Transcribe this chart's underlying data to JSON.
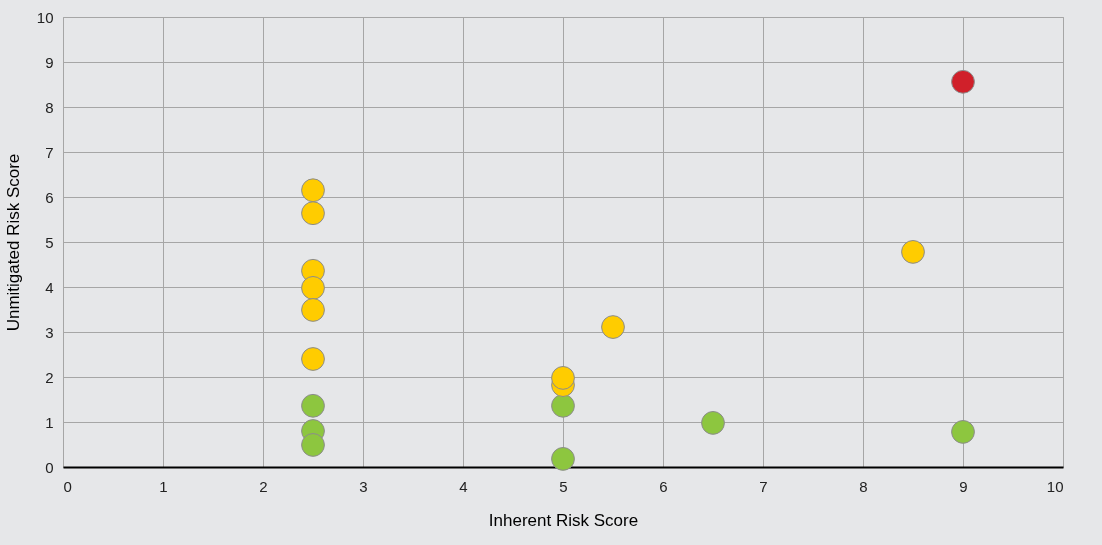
{
  "chart_data": {
    "type": "scatter",
    "xlabel": "Inherent Risk Score",
    "ylabel": "Unmitigated Risk Score",
    "xlim": [
      0,
      10
    ],
    "xticks": [
      0,
      1,
      2,
      3,
      4,
      5,
      6,
      7,
      8,
      9,
      10
    ],
    "ylim": [
      0,
      10
    ],
    "yticks": [
      0,
      1,
      2,
      3,
      4,
      5,
      6,
      7,
      8,
      9,
      10
    ],
    "grid": true,
    "marker": "circle",
    "series": [
      {
        "color": "#8dc63f",
        "x": [
          2.5,
          2.5,
          2.5,
          5,
          5,
          6.5,
          9
        ],
        "values": [
          1.36,
          0.8,
          0.49,
          1.36,
          0.18,
          0.98,
          0.78
        ]
      },
      {
        "color": "#ffcc00",
        "x": [
          2.5,
          2.5,
          2.5,
          2.5,
          2.5,
          2.5,
          5,
          5,
          5.5,
          8.5
        ],
        "values": [
          6.15,
          5.64,
          4.36,
          3.98,
          3.49,
          2.4,
          1.82,
          1.98,
          3.11,
          4.78
        ]
      },
      {
        "color": "#d0202a",
        "x": [
          9
        ],
        "values": [
          8.56
        ]
      }
    ]
  }
}
